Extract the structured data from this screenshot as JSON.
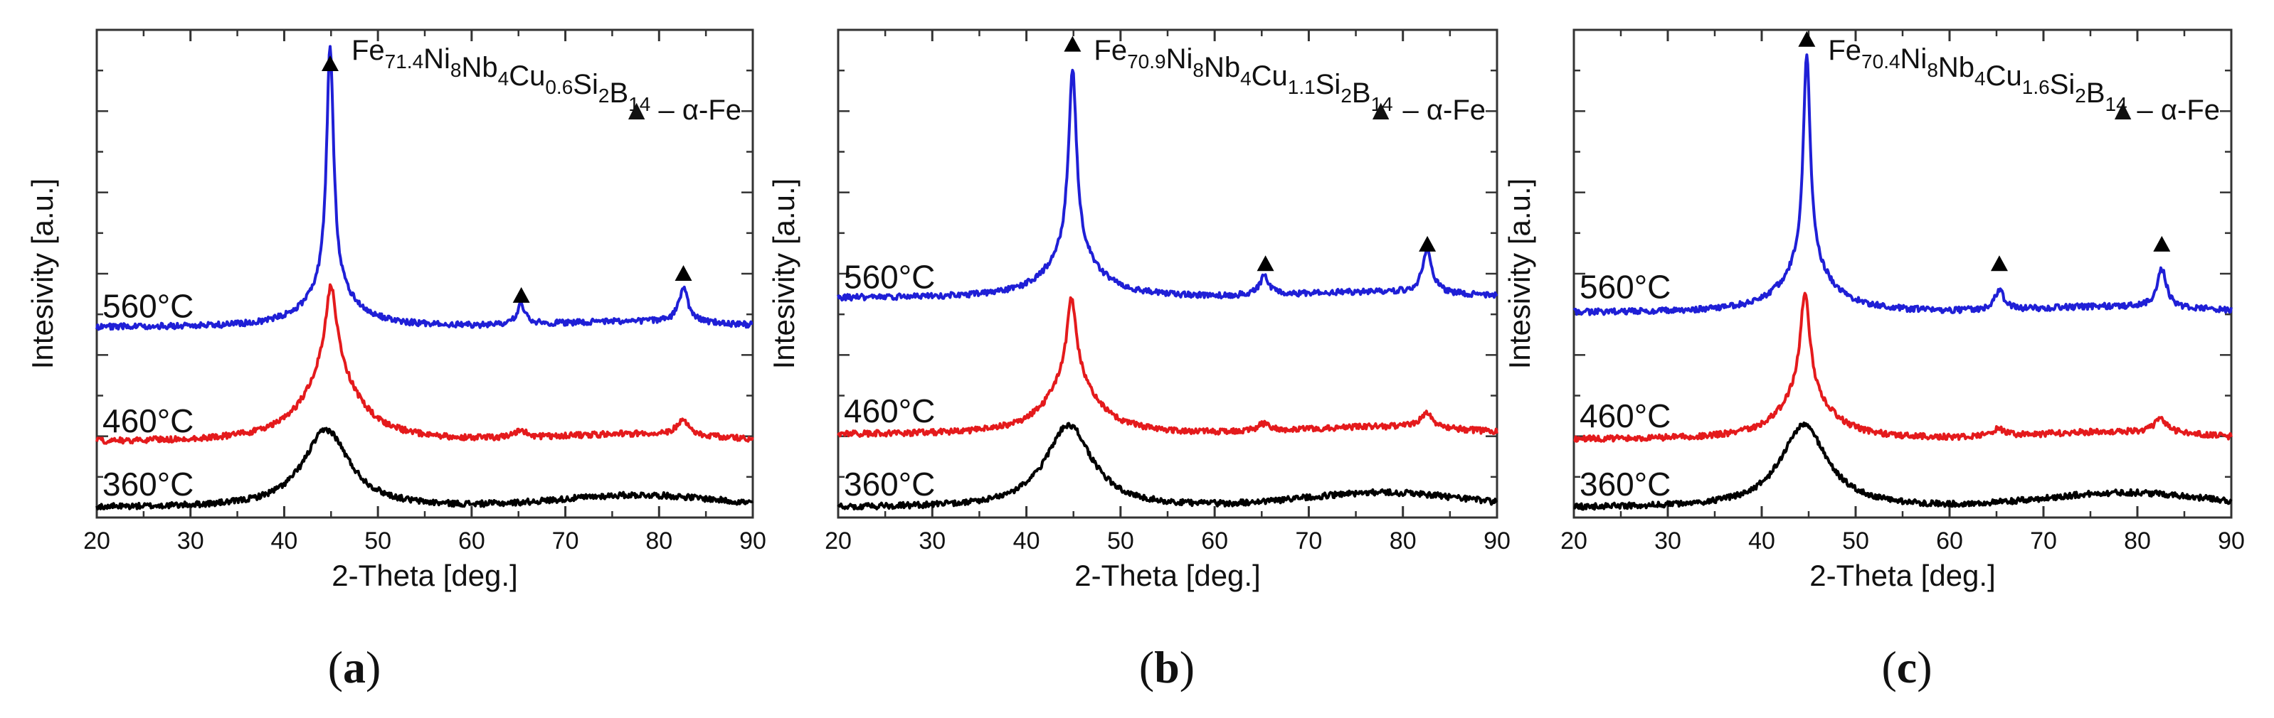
{
  "chart_data": [
    {
      "type": "line",
      "panel": "(a)",
      "panel_letter": "a",
      "title": {
        "base": "Fe",
        "parts": [
          {
            "t": "Fe",
            "sub": "71.4"
          },
          {
            "t": "Ni",
            "sub": "8"
          },
          {
            "t": "Nb",
            "sub": "4"
          },
          {
            "t": "Cu",
            "sub": "0.6"
          },
          {
            "t": "Si",
            "sub": "2"
          },
          {
            "t": "B",
            "sub": "14"
          }
        ]
      },
      "title_text": "Fe71.4Ni8Nb4Cu0.6Si2B14",
      "legend": "▲ – α-Fe",
      "xlabel": "2-Theta [deg.]",
      "ylabel": "Intesivity [a.u.]",
      "xlim": [
        20,
        90
      ],
      "xticks": [
        20,
        30,
        40,
        50,
        60,
        70,
        80,
        90
      ],
      "ylim": [
        0,
        1
      ],
      "series": [
        {
          "name": "360°C",
          "label": "360°C",
          "color": "#000000",
          "baseline": 0.02,
          "broad_center": 44.5,
          "broad_height": 0.16,
          "broad_width": 3.0,
          "hump_center": 78,
          "hump_height": 0.025,
          "peaks": []
        },
        {
          "name": "460°C",
          "label": "460°C",
          "color": "#e41a1c",
          "baseline": 0.155,
          "broad_center": 45.0,
          "broad_height": 0.16,
          "broad_width": 3.2,
          "hump_center": 78,
          "hump_height": 0.015,
          "peaks": [
            {
              "x": 45.0,
              "h": 0.16,
              "w": 0.7
            },
            {
              "x": 65.2,
              "h": 0.015,
              "w": 0.8
            },
            {
              "x": 82.5,
              "h": 0.03,
              "w": 0.8
            }
          ]
        },
        {
          "name": "560°C",
          "label": "560°C",
          "color": "#1f1fd6",
          "baseline": 0.39,
          "broad_center": 44.9,
          "broad_height": 0.08,
          "broad_width": 3.0,
          "hump_center": 78,
          "hump_height": 0.012,
          "peaks": [
            {
              "x": 44.9,
              "h": 0.5,
              "w": 0.45
            },
            {
              "x": 65.3,
              "h": 0.04,
              "w": 0.6
            },
            {
              "x": 82.6,
              "h": 0.07,
              "w": 0.6
            }
          ]
        }
      ],
      "markers": [
        {
          "x": 44.9,
          "y": 0.93
        },
        {
          "x": 65.3,
          "y": 0.455
        },
        {
          "x": 82.6,
          "y": 0.5
        }
      ]
    },
    {
      "type": "line",
      "panel": "(b)",
      "panel_letter": "b",
      "title": {
        "base": "Fe",
        "parts": [
          {
            "t": "Fe",
            "sub": "70.9"
          },
          {
            "t": "Ni",
            "sub": "8"
          },
          {
            "t": "Nb",
            "sub": "4"
          },
          {
            "t": "Cu",
            "sub": "1.1"
          },
          {
            "t": "Si",
            "sub": "2"
          },
          {
            "t": "B",
            "sub": "14"
          }
        ]
      },
      "title_text": "Fe70.9Ni8Nb4Cu1.1Si2B14",
      "legend": "▲ – α-Fe",
      "xlabel": "2-Theta [deg.]",
      "ylabel": "Intesivity [a.u.]",
      "xlim": [
        20,
        90
      ],
      "xticks": [
        20,
        30,
        40,
        50,
        60,
        70,
        80,
        90
      ],
      "ylim": [
        0,
        1
      ],
      "series": [
        {
          "name": "360°C",
          "label": "360°C",
          "color": "#000000",
          "baseline": 0.02,
          "broad_center": 44.5,
          "broad_height": 0.17,
          "broad_width": 3.0,
          "hump_center": 78,
          "hump_height": 0.03,
          "peaks": []
        },
        {
          "name": "460°C",
          "label": "460°C",
          "color": "#e41a1c",
          "baseline": 0.17,
          "broad_center": 44.8,
          "broad_height": 0.12,
          "broad_width": 3.0,
          "hump_center": 78,
          "hump_height": 0.015,
          "peaks": [
            {
              "x": 44.8,
              "h": 0.16,
              "w": 0.6
            },
            {
              "x": 65.2,
              "h": 0.015,
              "w": 0.8
            },
            {
              "x": 82.5,
              "h": 0.03,
              "w": 0.8
            }
          ]
        },
        {
          "name": "560°C",
          "label": "560°C",
          "color": "#1f1fd6",
          "baseline": 0.45,
          "broad_center": 44.9,
          "broad_height": 0.1,
          "broad_width": 3.0,
          "hump_center": 78,
          "hump_height": 0.012,
          "peaks": [
            {
              "x": 44.9,
              "h": 0.37,
              "w": 0.5
            },
            {
              "x": 65.3,
              "h": 0.04,
              "w": 0.6
            },
            {
              "x": 82.6,
              "h": 0.09,
              "w": 0.6
            }
          ]
        }
      ],
      "markers": [
        {
          "x": 44.9,
          "y": 0.97
        },
        {
          "x": 65.4,
          "y": 0.52
        },
        {
          "x": 82.6,
          "y": 0.56
        }
      ]
    },
    {
      "type": "line",
      "panel": "(c)",
      "panel_letter": "c",
      "title": {
        "base": "Fe",
        "parts": [
          {
            "t": "Fe",
            "sub": "70.4"
          },
          {
            "t": "Ni",
            "sub": "8"
          },
          {
            "t": "Nb",
            "sub": "4"
          },
          {
            "t": "Cu",
            "sub": "1.6"
          },
          {
            "t": "Si",
            "sub": "2"
          },
          {
            "t": "B",
            "sub": "14"
          }
        ]
      },
      "title_text": "Fe70.4Ni8Nb4Cu1.6Si2B14",
      "legend": "▲– α-Fe",
      "xlabel": "2-Theta [deg.]",
      "ylabel": "Intesivity [a.u.]",
      "xlim": [
        20,
        90
      ],
      "xticks": [
        20,
        30,
        40,
        50,
        60,
        70,
        80,
        90
      ],
      "ylim": [
        0,
        1
      ],
      "series": [
        {
          "name": "360°C",
          "label": "360°C",
          "color": "#000000",
          "baseline": 0.02,
          "broad_center": 44.5,
          "broad_height": 0.17,
          "broad_width": 3.0,
          "hump_center": 79,
          "hump_height": 0.03,
          "peaks": []
        },
        {
          "name": "460°C",
          "label": "460°C",
          "color": "#e41a1c",
          "baseline": 0.16,
          "broad_center": 44.6,
          "broad_height": 0.1,
          "broad_width": 3.0,
          "hump_center": 78,
          "hump_height": 0.015,
          "peaks": [
            {
              "x": 44.6,
              "h": 0.2,
              "w": 0.6
            },
            {
              "x": 65.2,
              "h": 0.015,
              "w": 0.8
            },
            {
              "x": 82.5,
              "h": 0.03,
              "w": 0.8
            }
          ]
        },
        {
          "name": "560°C",
          "label": "560°C",
          "color": "#1f1fd6",
          "baseline": 0.42,
          "broad_center": 44.8,
          "broad_height": 0.1,
          "broad_width": 3.0,
          "hump_center": 78,
          "hump_height": 0.012,
          "peaks": [
            {
              "x": 44.8,
              "h": 0.43,
              "w": 0.45
            },
            {
              "x": 65.3,
              "h": 0.04,
              "w": 0.6
            },
            {
              "x": 82.6,
              "h": 0.08,
              "w": 0.6
            }
          ]
        }
      ],
      "markers": [
        {
          "x": 44.8,
          "y": 0.98
        },
        {
          "x": 65.3,
          "y": 0.52
        },
        {
          "x": 82.6,
          "y": 0.56
        }
      ]
    }
  ]
}
